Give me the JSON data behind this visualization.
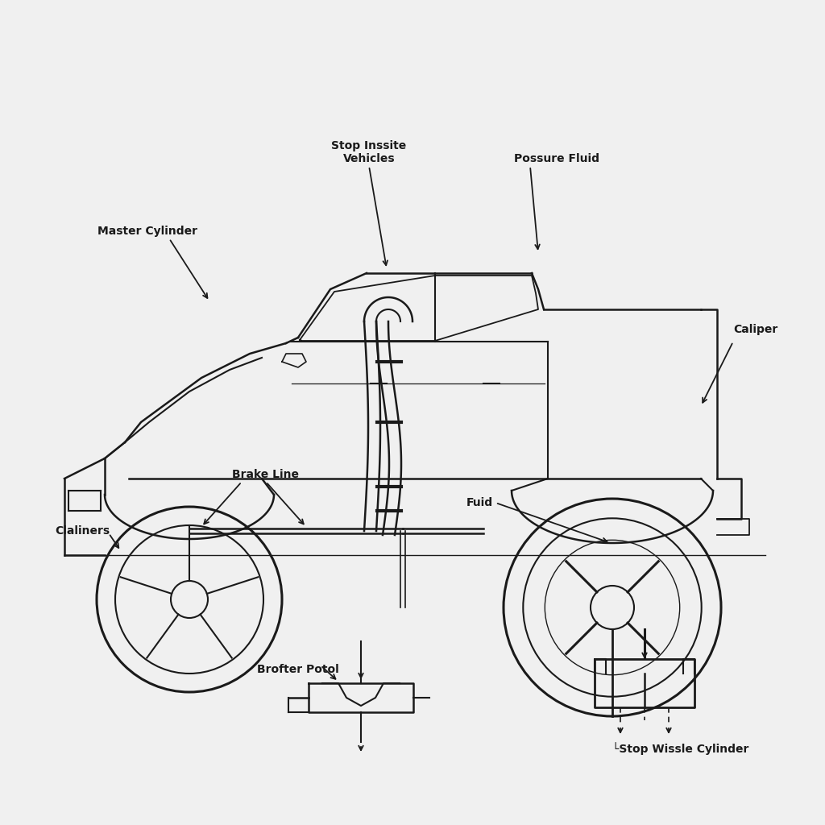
{
  "bg_color": "#f0f0f0",
  "line_color": "#1a1a1a",
  "labels": {
    "master_cylinder": "Master Cylinder",
    "stop_inssite": "Stop Inssite\nVehicles",
    "possure_fluid": "Possure Fluid",
    "caliper": "Caliper",
    "brake_line": "Brake Line",
    "claliners": "Claliners",
    "brofter_potol": "Brofter Potol",
    "fuid": "Fuid",
    "stop_wissle": "└Stop Wissle Cylinder"
  },
  "font_size": 10,
  "lw": 1.5
}
